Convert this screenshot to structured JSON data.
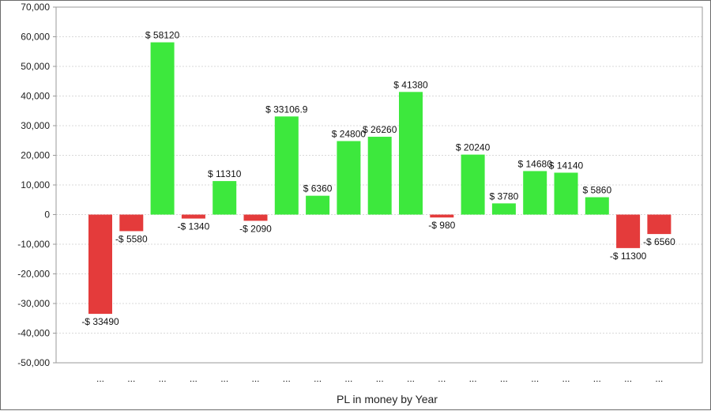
{
  "chart_data": {
    "type": "bar",
    "title": "",
    "xlabel": "PL in money by Year",
    "ylabel": "",
    "ylim": [
      -50000,
      70000
    ],
    "yticks": [
      70000,
      60000,
      50000,
      40000,
      30000,
      20000,
      10000,
      0,
      -10000,
      -20000,
      -30000,
      -40000,
      -50000
    ],
    "ytick_labels": [
      "70,000",
      "60,000",
      "50,000",
      "40,000",
      "30,000",
      "20,000",
      "10,000",
      "0",
      "-10,000",
      "-20,000",
      "-30,000",
      "-40,000",
      "-50,000"
    ],
    "grid": true,
    "categories": [
      "...",
      "...",
      "...",
      "...",
      "...",
      "...",
      "...",
      "...",
      "...",
      "...",
      "...",
      "...",
      "...",
      "...",
      "...",
      "...",
      "...",
      "...",
      "..."
    ],
    "values": [
      -33490,
      -5580,
      58120,
      -1340,
      11310,
      -2090,
      33106.9,
      6360,
      24800,
      26260,
      41380,
      -980,
      20240,
      3780,
      14680,
      14140,
      5860,
      -11300,
      -6560
    ],
    "data_labels": [
      "-$ 33490",
      "-$ 5580",
      "$ 58120",
      "-$ 1340",
      "$ 11310",
      "-$ 2090",
      "$ 33106.9",
      "$ 6360",
      "$ 24800",
      "$ 26260",
      "$ 41380",
      "-$ 980",
      "$ 20240",
      "$ 3780",
      "$ 14680",
      "$ 14140",
      "$ 5860",
      "-$ 11300",
      "-$ 6560"
    ],
    "colors": {
      "positive": "#3de83d",
      "negative": "#e43b3b",
      "grid": "#d9d9d9",
      "axis": "#9a9a9a"
    }
  }
}
